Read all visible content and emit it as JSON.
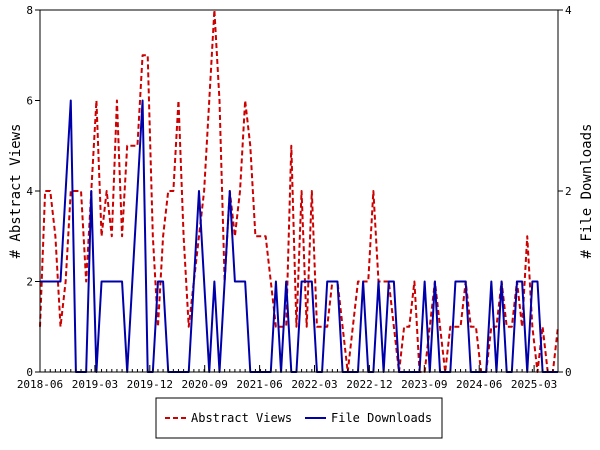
{
  "chart_data": {
    "type": "line",
    "x_tick_labels": [
      "2018-06",
      "2019-03",
      "2019-12",
      "2020-09",
      "2021-06",
      "2022-03",
      "2022-12",
      "2023-09",
      "2024-06",
      "2025-03"
    ],
    "y_left": {
      "label": "# Abstract Views",
      "ylim": [
        0,
        8
      ],
      "ticks": [
        0,
        2,
        4,
        6,
        8
      ]
    },
    "y_right": {
      "label": "# File Downloads",
      "ylim": [
        0,
        4
      ],
      "ticks": [
        0,
        2,
        4
      ]
    },
    "grid": false,
    "legend_position": "bottom-center",
    "series": [
      {
        "name": "Abstract Views",
        "axis": "left",
        "color": "#cc0000",
        "dash": "dashed",
        "values": [
          1,
          4,
          4,
          3,
          1,
          2,
          4,
          4,
          4,
          2,
          4,
          6,
          3,
          4,
          3,
          6,
          3,
          5,
          5,
          5,
          7,
          7,
          3,
          1,
          3,
          4,
          4,
          6,
          3,
          1,
          2,
          3,
          4,
          6,
          8,
          6,
          2,
          4,
          3,
          4,
          6,
          5,
          3,
          3,
          3,
          2,
          1,
          1,
          1,
          5,
          1,
          4,
          1,
          4,
          1,
          1,
          1,
          2,
          2,
          1,
          0,
          1,
          2,
          2,
          2,
          4,
          2,
          2,
          2,
          1,
          0,
          1,
          1,
          2,
          0,
          0,
          1,
          2,
          1,
          0,
          1,
          1,
          1,
          2,
          1,
          1,
          0,
          0,
          1,
          1,
          2,
          1,
          1,
          2,
          1,
          3,
          1,
          0,
          1,
          0,
          0,
          1
        ]
      },
      {
        "name": "File Downloads",
        "axis": "right",
        "color": "#0000aa",
        "dash": "solid",
        "values": [
          1,
          1,
          1,
          1,
          1,
          2,
          3,
          0,
          0,
          0,
          2,
          0,
          1,
          1,
          1,
          1,
          1,
          0,
          1,
          2,
          3,
          0,
          0,
          1,
          1,
          0,
          0,
          0,
          0,
          0,
          1,
          2,
          1,
          0,
          1,
          0,
          1,
          2,
          1,
          1,
          1,
          0,
          0,
          0,
          0,
          0,
          1,
          0,
          1,
          0,
          0,
          1,
          1,
          1,
          0,
          0,
          1,
          1,
          1,
          0,
          0,
          0,
          0,
          1,
          0,
          0,
          1,
          0,
          1,
          1,
          0,
          0,
          0,
          0,
          0,
          1,
          0,
          1,
          0,
          0,
          0,
          1,
          1,
          1,
          0,
          0,
          0,
          0,
          1,
          0,
          1,
          0,
          0,
          1,
          1,
          0,
          1,
          1,
          0,
          0,
          0,
          0
        ]
      }
    ]
  }
}
